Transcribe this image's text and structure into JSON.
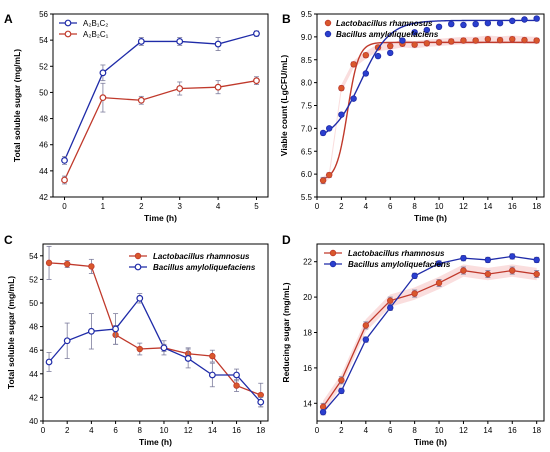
{
  "colors": {
    "red": "#c0392b",
    "red_fill": "#d9582c",
    "blue": "#1f2ba8",
    "blue_fill": "#2a3fcf",
    "error": "#7c7c9c",
    "band": "#f4b6b6"
  },
  "chart_data": [
    {
      "id": "A",
      "letter": "A",
      "type": "line",
      "xlabel": "Time (h)",
      "ylabel": "Total soluble sugar (mg/mL)",
      "xlim": [
        -0.3,
        5.3
      ],
      "ylim": [
        42,
        56
      ],
      "xticks": [
        0,
        1,
        2,
        3,
        4,
        5
      ],
      "yticks": [
        42,
        44,
        46,
        48,
        50,
        52,
        54,
        56
      ],
      "legend_position": "top-left",
      "series": [
        {
          "name": "A₂B₁C₂",
          "color": "blue",
          "marker": "open-circle",
          "line": "straight",
          "x": [
            0,
            1,
            2,
            3,
            4,
            5
          ],
          "y": [
            44.8,
            51.5,
            53.9,
            53.9,
            53.7,
            54.5
          ],
          "err": [
            0.3,
            0.6,
            0.3,
            0.3,
            0.5,
            0.2
          ]
        },
        {
          "name": "A₂B₂C₁",
          "color": "red",
          "marker": "open-circle",
          "line": "straight",
          "x": [
            0,
            1,
            2,
            3,
            4,
            5
          ],
          "y": [
            43.3,
            49.6,
            49.4,
            50.3,
            50.4,
            50.9
          ],
          "err": [
            0.3,
            1.1,
            0.3,
            0.5,
            0.5,
            0.3
          ]
        }
      ]
    },
    {
      "id": "B",
      "letter": "B",
      "type": "scatter",
      "xlabel": "Time (h)",
      "ylabel": "Viable count (LgCFU/mL)",
      "xlim": [
        0,
        18.6
      ],
      "ylim": [
        5.5,
        9.5
      ],
      "xticks": [
        0,
        2,
        4,
        6,
        8,
        10,
        12,
        14,
        16,
        18
      ],
      "yticks": [
        5.5,
        6.0,
        6.5,
        7.0,
        7.5,
        8.0,
        8.5,
        9.0,
        9.5
      ],
      "ytick_labels": [
        "5.5",
        "6.0",
        "6.5",
        "7.0",
        "7.5",
        "8.0",
        "8.5",
        "9.0",
        "9.5"
      ],
      "legend_position": "top-left",
      "series": [
        {
          "name": "Lactobacillus rhamnosus",
          "color": "red",
          "marker": "filled-circle",
          "line": "fit",
          "x": [
            0.5,
            1,
            2,
            3,
            4,
            5,
            6,
            7,
            8,
            9,
            10,
            11,
            12,
            13,
            14,
            15,
            16,
            17,
            18
          ],
          "y": [
            5.86,
            5.98,
            7.88,
            8.4,
            8.6,
            8.77,
            8.8,
            8.85,
            8.83,
            8.86,
            8.88,
            8.9,
            8.92,
            8.92,
            8.95,
            8.93,
            8.95,
            8.93,
            8.92
          ],
          "err": [
            0.07,
            0.05,
            0.05,
            0.05,
            0.05,
            0.05,
            0.05,
            0.05,
            0.05,
            0.05,
            0.05,
            0.05,
            0.05,
            0.05,
            0.05,
            0.05,
            0.05,
            0.05,
            0.05
          ],
          "fit": {
            "low": 5.86,
            "high": 8.88,
            "mid": 2.5,
            "k": 2.2
          }
        },
        {
          "name": "Bacillus amyloliquefaciens",
          "color": "blue",
          "marker": "filled-circle",
          "line": "fit",
          "x": [
            0.5,
            1,
            2,
            3,
            4,
            5,
            6,
            7,
            8,
            9,
            10,
            11,
            12,
            13,
            14,
            15,
            16,
            17,
            18
          ],
          "y": [
            6.9,
            7.0,
            7.3,
            7.65,
            8.2,
            8.58,
            8.65,
            8.92,
            9.1,
            9.15,
            9.22,
            9.28,
            9.26,
            9.28,
            9.3,
            9.3,
            9.35,
            9.38,
            9.4
          ],
          "err": [
            0.04,
            0.04,
            0.04,
            0.04,
            0.04,
            0.04,
            0.04,
            0.04,
            0.04,
            0.04,
            0.04,
            0.04,
            0.04,
            0.04,
            0.04,
            0.04,
            0.04,
            0.04,
            0.04
          ],
          "fit": {
            "low": 6.7,
            "high": 9.36,
            "mid": 3.6,
            "k": 0.85
          }
        }
      ]
    },
    {
      "id": "C",
      "letter": "C",
      "type": "line",
      "xlabel": "Time (h)",
      "ylabel": "Total soluble sugar (mg/mL)",
      "xlim": [
        0,
        18.6
      ],
      "ylim": [
        40,
        55
      ],
      "xticks": [
        0,
        2,
        4,
        6,
        8,
        10,
        12,
        14,
        16,
        18
      ],
      "yticks": [
        40,
        42,
        44,
        46,
        48,
        50,
        52,
        54
      ],
      "legend_position": "top-right",
      "series": [
        {
          "name": "Lactobacillus rhamnosus",
          "color": "red",
          "marker": "filled-circle",
          "line": "straight",
          "x": [
            0.5,
            2,
            4,
            6,
            8,
            10,
            12,
            14,
            16,
            18
          ],
          "y": [
            53.4,
            53.3,
            53.1,
            47.3,
            46.1,
            46.2,
            45.7,
            45.5,
            43.0,
            42.2
          ],
          "err": [
            1.4,
            0.3,
            0.6,
            0.8,
            0.5,
            0.6,
            0.5,
            0.5,
            0.5,
            1.0
          ]
        },
        {
          "name": "Bacillus amyloliquefaciens",
          "color": "blue",
          "marker": "open-circle",
          "line": "straight",
          "x": [
            0.5,
            2,
            4,
            6,
            8,
            10,
            12,
            14,
            16,
            18
          ],
          "y": [
            45.0,
            46.8,
            47.6,
            47.8,
            50.4,
            46.2,
            45.3,
            43.9,
            43.9,
            41.6
          ],
          "err": [
            0.8,
            1.5,
            1.5,
            1.3,
            0.4,
            0.3,
            0.8,
            1.0,
            0.5,
            0.4
          ]
        }
      ]
    },
    {
      "id": "D",
      "letter": "D",
      "type": "line",
      "xlabel": "Time (h)",
      "ylabel": "Reducing sugar (mg/mL)",
      "xlim": [
        0,
        18.6
      ],
      "ylim": [
        13,
        23
      ],
      "xticks": [
        0,
        2,
        4,
        6,
        8,
        10,
        12,
        14,
        16,
        18
      ],
      "yticks": [
        14,
        16,
        18,
        20,
        22
      ],
      "legend_position": "top-left",
      "series": [
        {
          "name": "Lactobacillus rhamnosus",
          "color": "red",
          "marker": "filled-circle",
          "line": "straight",
          "x": [
            0.5,
            2,
            4,
            6,
            8,
            10,
            12,
            14,
            16,
            18
          ],
          "y": [
            13.8,
            15.3,
            18.4,
            19.8,
            20.2,
            20.8,
            21.5,
            21.3,
            21.5,
            21.3
          ],
          "err": [
            0.2,
            0.2,
            0.2,
            0.2,
            0.2,
            0.2,
            0.2,
            0.2,
            0.2,
            0.2
          ]
        },
        {
          "name": "Bacillus amyloliquefaciens",
          "color": "blue",
          "marker": "filled-circle",
          "line": "straight",
          "x": [
            0.5,
            2,
            4,
            6,
            8,
            10,
            12,
            14,
            16,
            18
          ],
          "y": [
            13.5,
            14.7,
            17.6,
            19.4,
            21.2,
            21.9,
            22.2,
            22.1,
            22.3,
            22.1
          ],
          "err": [
            0.15,
            0.15,
            0.15,
            0.15,
            0.15,
            0.15,
            0.15,
            0.15,
            0.15,
            0.15
          ]
        }
      ]
    }
  ]
}
